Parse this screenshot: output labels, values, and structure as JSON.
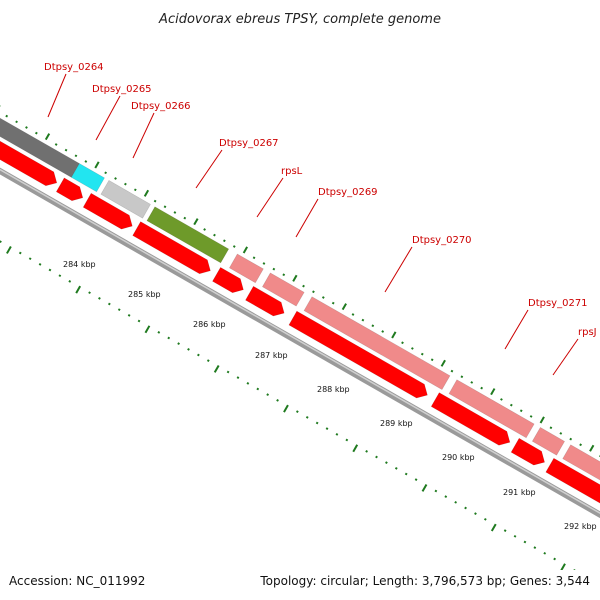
{
  "title": "Acidovorax ebreus TPSY, complete genome",
  "footer": {
    "accession": "Accession: NC_011992",
    "summary": "Topology: circular; Length: 3,796,573 bp; Genes: 3,544"
  },
  "colors": {
    "forward_cds": "#f08a8a",
    "reverse_cds": "#ff0000",
    "backbone": "#888888",
    "ticks": "#1f7a1f",
    "labels": "#cc0000"
  },
  "gene_labels": [
    "Dtpsy_0264",
    "Dtpsy_0265",
    "Dtpsy_0266",
    "Dtpsy_0267",
    "rpsL",
    "Dtpsy_0269",
    "Dtpsy_0270",
    "Dtpsy_0271",
    "rpsJ"
  ],
  "scale_ticks": [
    "284 kbp",
    "285 kbp",
    "286 kbp",
    "287 kbp",
    "288 kbp",
    "289 kbp",
    "290 kbp",
    "291 kbp",
    "292 kbp"
  ]
}
